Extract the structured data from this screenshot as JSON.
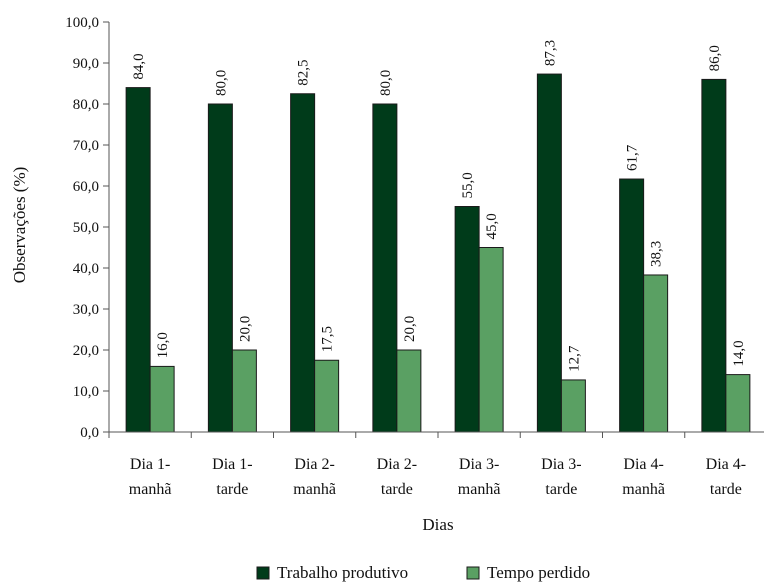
{
  "chart_data": {
    "type": "bar",
    "title": "",
    "xlabel": "Dias",
    "ylabel": "Observações (%)",
    "ylim": [
      0,
      100
    ],
    "ytick_step": 10,
    "ytick_format": "comma-1-decimal",
    "grid": false,
    "legend_position": "bottom",
    "categories": [
      [
        "Dia 1-",
        "manhã"
      ],
      [
        "Dia 1-",
        "tarde"
      ],
      [
        "Dia 2-",
        "manhã"
      ],
      [
        "Dia 2-",
        "tarde"
      ],
      [
        "Dia 3-",
        "manhã"
      ],
      [
        "Dia 3-",
        "tarde"
      ],
      [
        "Dia 4-",
        "manhã"
      ],
      [
        "Dia 4-",
        "tarde"
      ]
    ],
    "series": [
      {
        "name": "Trabalho produtivo",
        "color": "#003b1a",
        "values": [
          84.0,
          80.0,
          82.5,
          80.0,
          55.0,
          87.3,
          61.7,
          86.0
        ],
        "labels": [
          "84,0",
          "80,0",
          "82,5",
          "80,0",
          "55,0",
          "87,3",
          "61,7",
          "86,0"
        ]
      },
      {
        "name": "Tempo perdido",
        "color": "#5aa063",
        "values": [
          16.0,
          20.0,
          17.5,
          20.0,
          45.0,
          12.7,
          38.3,
          14.0
        ],
        "labels": [
          "16,0",
          "20,0",
          "17,5",
          "20,0",
          "45,0",
          "12,7",
          "38,3",
          "14,0"
        ]
      }
    ]
  }
}
